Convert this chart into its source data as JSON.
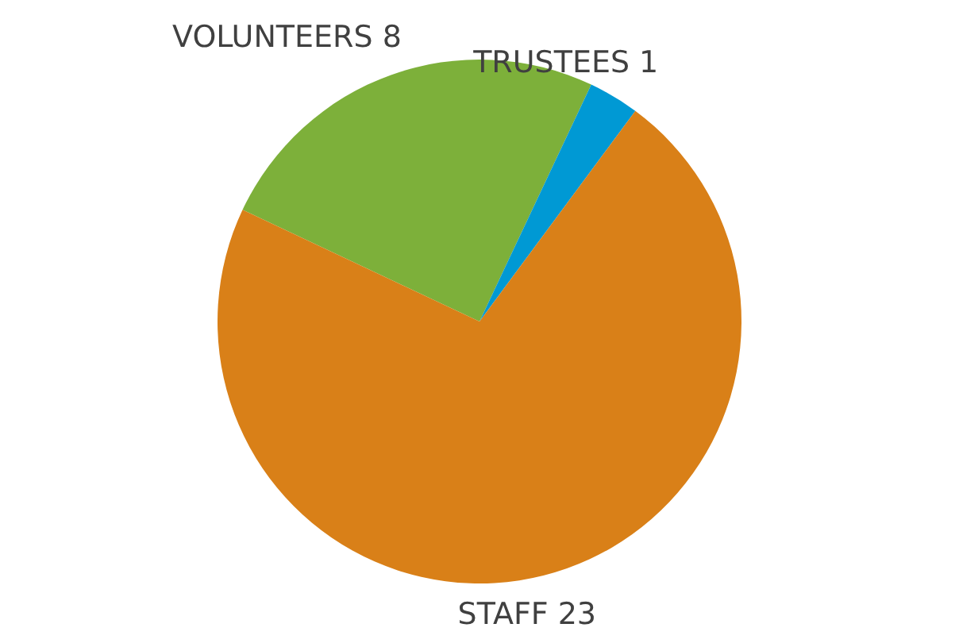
{
  "chart_data": {
    "type": "pie",
    "categories": [
      "VOLUNTEERS",
      "TRUSTEES",
      "STAFF"
    ],
    "values": [
      8,
      1,
      23
    ],
    "colors": [
      "#7db03a",
      "#0099d4",
      "#d98018"
    ],
    "data_labels": true
  }
}
